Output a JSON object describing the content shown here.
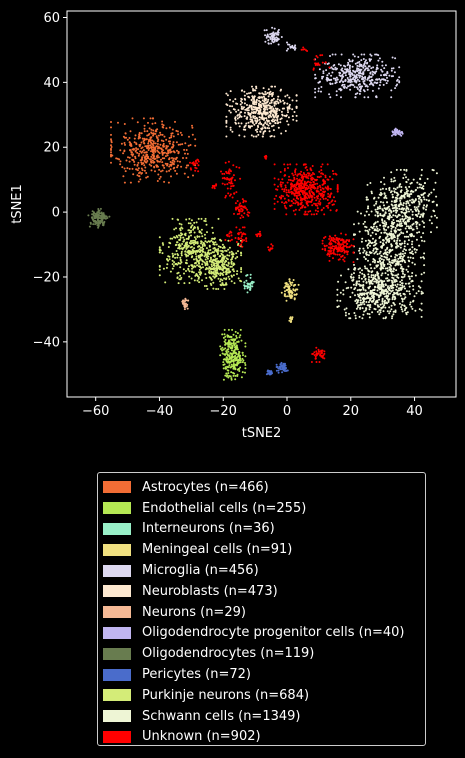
{
  "chart_data": {
    "type": "scatter",
    "xlabel": "tSNE2",
    "ylabel": "tSNE1",
    "xlim": [
      -69,
      53
    ],
    "ylim": [
      -57,
      62
    ],
    "xticks": [
      -60,
      -40,
      -20,
      0,
      20,
      40
    ],
    "yticks": [
      -40,
      -20,
      0,
      20,
      40,
      60
    ],
    "grid": false,
    "legend_position": "bottom-outside",
    "background": "#000000",
    "series": [
      {
        "name": "Astrocytes (n=466)",
        "color": "#f26d35",
        "clusters": [
          {
            "cx": -42,
            "cy": 19,
            "sx": 6,
            "sy": 4.5,
            "n": 466
          }
        ]
      },
      {
        "name": "Endothelial cells (n=255)",
        "color": "#b5e853",
        "clusters": [
          {
            "cx": -17,
            "cy": -44,
            "sx": 1.8,
            "sy": 3.5,
            "n": 255
          }
        ]
      },
      {
        "name": "Interneurons (n=36)",
        "color": "#99f0c8",
        "clusters": [
          {
            "cx": -12,
            "cy": -22,
            "sx": 0.7,
            "sy": 1.5,
            "n": 36
          }
        ]
      },
      {
        "name": "Meningeal cells (n=91)",
        "color": "#f0e080",
        "clusters": [
          {
            "cx": 1,
            "cy": -24,
            "sx": 1.2,
            "sy": 1.5,
            "n": 80
          },
          {
            "cx": 1.5,
            "cy": -33,
            "sx": 0.5,
            "sy": 0.5,
            "n": 11
          }
        ]
      },
      {
        "name": "Microglia (n=456)",
        "color": "#ddd8f0",
        "clusters": [
          {
            "cx": 22,
            "cy": 42,
            "sx": 6,
            "sy": 3,
            "n": 380
          },
          {
            "cx": -4.5,
            "cy": 54,
            "sx": 1.3,
            "sy": 1.3,
            "n": 60
          },
          {
            "cx": 2,
            "cy": 51,
            "sx": 1.2,
            "sy": 0.6,
            "n": 16
          }
        ]
      },
      {
        "name": "Neuroblasts (n=473)",
        "color": "#fde8d0",
        "clusters": [
          {
            "cx": -8,
            "cy": 31,
            "sx": 5,
            "sy": 3.5,
            "n": 473
          }
        ]
      },
      {
        "name": "Neurons (n=29)",
        "color": "#f5b995",
        "clusters": [
          {
            "cx": -32,
            "cy": -28,
            "sx": 0.6,
            "sy": 1.2,
            "n": 29
          }
        ]
      },
      {
        "name": "Oligodendrocyte progenitor cells (n=40)",
        "color": "#c0b5f0",
        "clusters": [
          {
            "cx": 34.5,
            "cy": 24.5,
            "sx": 0.8,
            "sy": 0.6,
            "n": 40
          }
        ]
      },
      {
        "name": "Oligodendrocytes (n=119)",
        "color": "#687c4f",
        "clusters": [
          {
            "cx": -59,
            "cy": -2,
            "sx": 1.5,
            "sy": 1.4,
            "n": 119
          }
        ]
      },
      {
        "name": "Pericytes (n=72)",
        "color": "#4a6ccb",
        "clusters": [
          {
            "cx": -1.5,
            "cy": -48,
            "sx": 0.8,
            "sy": 0.7,
            "n": 50
          },
          {
            "cx": -5.5,
            "cy": -49.5,
            "sx": 0.7,
            "sy": 0.4,
            "n": 22
          }
        ]
      },
      {
        "name": "Purkinje neurons (n=684)",
        "color": "#d4ec78",
        "clusters": [
          {
            "cx": -30,
            "cy": -12,
            "sx": 4.5,
            "sy": 4.5,
            "n": 380
          },
          {
            "cx": -21,
            "cy": -16,
            "sx": 3,
            "sy": 3.5,
            "n": 304
          }
        ]
      },
      {
        "name": "Schwann cells (n=1349)",
        "color": "#eef5d5",
        "clusters": [
          {
            "cx": 36,
            "cy": 2,
            "sx": 5,
            "sy": 5,
            "n": 400
          },
          {
            "cx": 32,
            "cy": -12,
            "sx": 5,
            "sy": 6,
            "n": 500
          },
          {
            "cx": 29,
            "cy": -25,
            "sx": 6,
            "sy": 3.5,
            "n": 449
          }
        ]
      },
      {
        "name": "Unknown (n=902)",
        "color": "#ff0000",
        "clusters": [
          {
            "cx": 6,
            "cy": 7,
            "sx": 4.5,
            "sy": 3.5,
            "n": 480
          },
          {
            "cx": 16,
            "cy": -11,
            "sx": 2.2,
            "sy": 2,
            "n": 160
          },
          {
            "cx": -18,
            "cy": 10,
            "sx": 1.5,
            "sy": 2.5,
            "n": 55
          },
          {
            "cx": -14,
            "cy": 1,
            "sx": 1.2,
            "sy": 1.8,
            "n": 45
          },
          {
            "cx": -14,
            "cy": -8,
            "sx": 1,
            "sy": 1.5,
            "n": 30
          },
          {
            "cx": 10,
            "cy": -44,
            "sx": 1,
            "sy": 1,
            "n": 40
          },
          {
            "cx": 10,
            "cy": 46,
            "sx": 1.5,
            "sy": 1.5,
            "n": 20
          },
          {
            "cx": -29,
            "cy": 15,
            "sx": 0.8,
            "sy": 1.2,
            "n": 20
          },
          {
            "cx": -18,
            "cy": -7,
            "sx": 0.6,
            "sy": 1,
            "n": 12
          },
          {
            "cx": -5,
            "cy": -11,
            "sx": 0.5,
            "sy": 0.5,
            "n": 10
          },
          {
            "cx": -9,
            "cy": -7,
            "sx": 0.5,
            "sy": 0.5,
            "n": 10
          },
          {
            "cx": -23,
            "cy": 8,
            "sx": 0.4,
            "sy": 0.4,
            "n": 8
          },
          {
            "cx": 5.5,
            "cy": 50,
            "sx": 0.5,
            "sy": 0.4,
            "n": 6
          },
          {
            "cx": -6.5,
            "cy": 17,
            "sx": 0.3,
            "sy": 0.3,
            "n": 6
          }
        ]
      }
    ]
  }
}
